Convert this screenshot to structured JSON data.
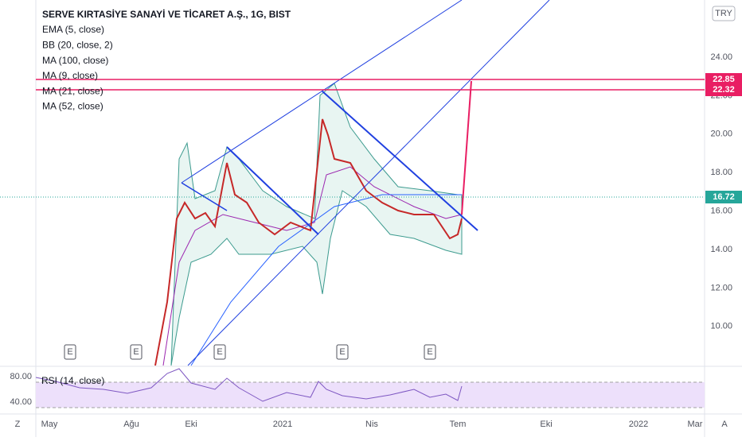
{
  "header": {
    "title": "SERVE KIRTASİYE SANAYİ VE TİCARET A.Ş., 1G, BIST",
    "currency": "TRY"
  },
  "indicators": [
    "EMA (5, close)",
    "BB (20, close, 2)",
    "MA (100, close)",
    "MA (9, close)",
    "MA (21, close)",
    "MA (52, close)"
  ],
  "price_axis": [
    "24.00",
    "22.00",
    "20.00",
    "18.00",
    "16.00",
    "14.00",
    "12.00",
    "10.00"
  ],
  "price_labels": [
    "22.85",
    "22.32",
    "16.72"
  ],
  "events": [
    "E",
    "E",
    "E",
    "E",
    "E"
  ],
  "rsi": {
    "title": "RSI (14, close)",
    "axis": [
      "80.00",
      "40.00"
    ]
  },
  "time_axis": [
    "May",
    "Ağu",
    "Eki",
    "2021",
    "Nis",
    "Tem",
    "Eki",
    "2022",
    "Mar"
  ],
  "buttons": [
    "Z",
    "A"
  ]
}
